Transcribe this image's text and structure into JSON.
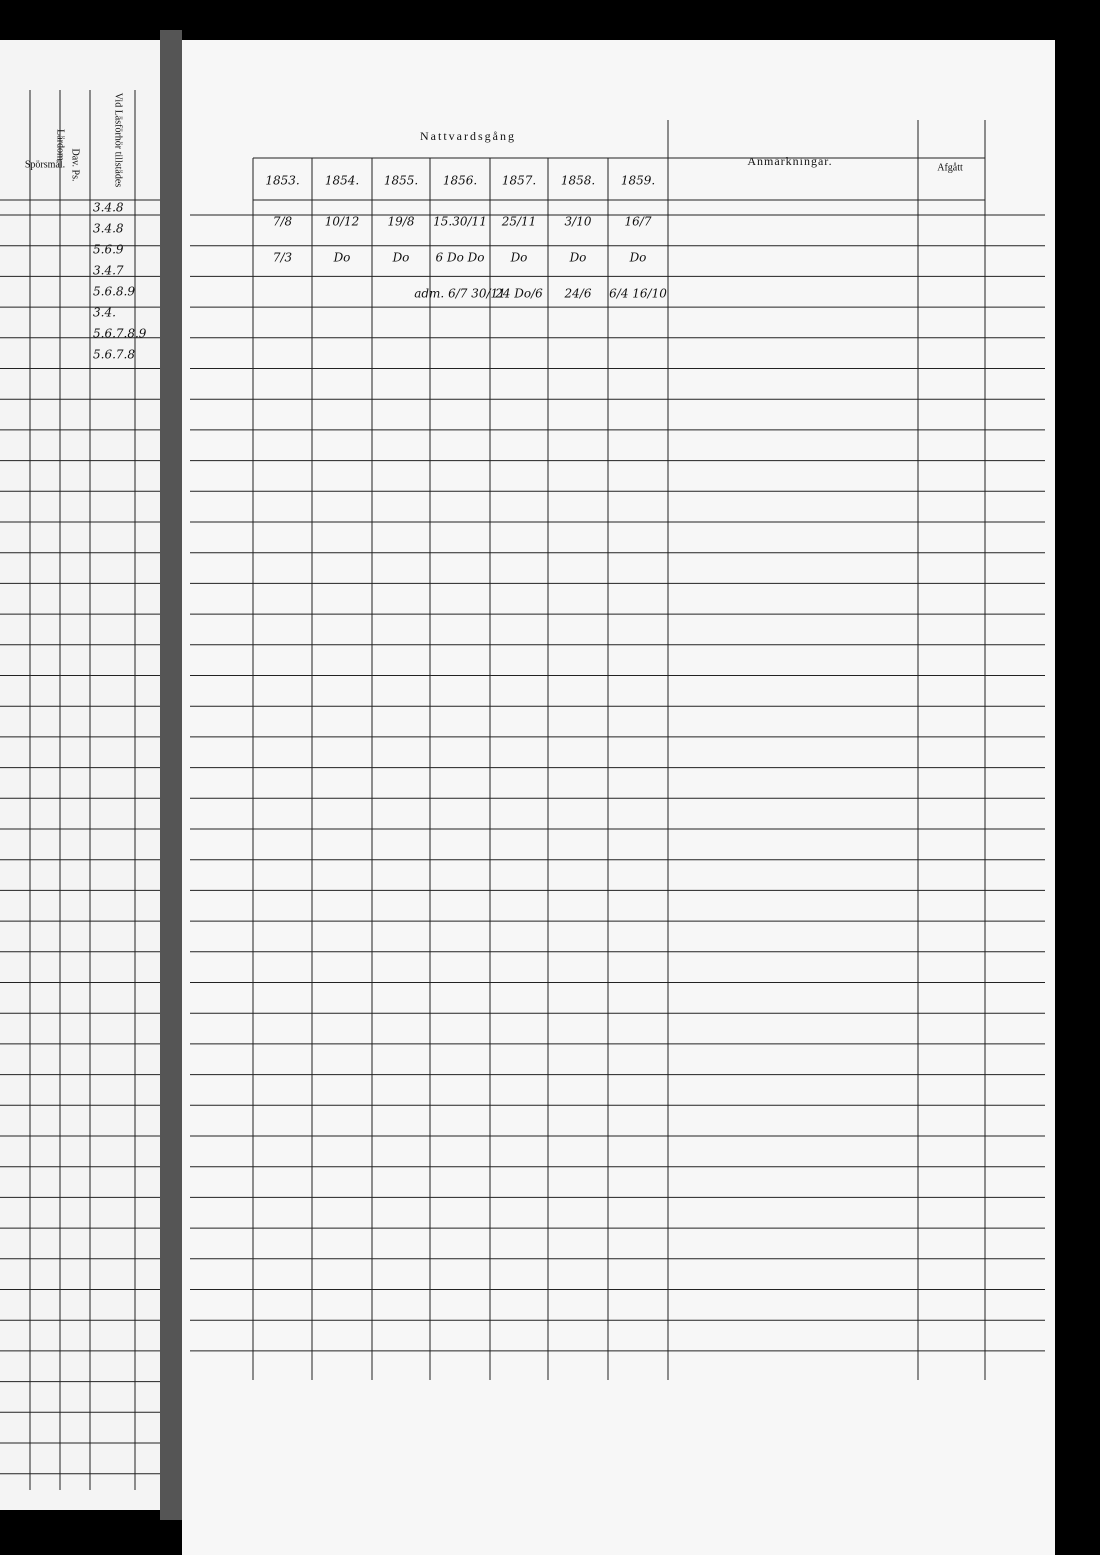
{
  "left_page": {
    "headers": [
      "Spörsmål.",
      "Dav. Ps.",
      "Lärdom",
      "Vid Läsförhör tillstädes"
    ],
    "entries": [
      "3.4.8",
      "3.4.8",
      "5.6.9",
      "3.4.7",
      "5.6.8.9",
      "3.4.",
      "5.6.7.8.9",
      "5.6.7.8"
    ]
  },
  "header": {
    "section": "Nattvardsgång",
    "remarks": "Anmärkningar.",
    "departed": "Afgått"
  },
  "years": [
    {
      "year": "1853.",
      "entries": [
        "7/8",
        "7/3"
      ]
    },
    {
      "year": "1854.",
      "entries": [
        "10/12",
        "Do"
      ]
    },
    {
      "year": "1855.",
      "entries": [
        "19/8",
        "Do"
      ]
    },
    {
      "year": "1856.",
      "entries": [
        "15.30/11",
        "6 Do Do",
        "adm. 6/7 30/11"
      ]
    },
    {
      "year": "1857.",
      "entries": [
        "25/11",
        "Do",
        "24 Do/6"
      ]
    },
    {
      "year": "1858.",
      "entries": [
        "3/10",
        "Do",
        "24/6"
      ]
    },
    {
      "year": "1859.",
      "entries": [
        "16/7",
        "Do",
        "6/4 16/10"
      ]
    }
  ]
}
